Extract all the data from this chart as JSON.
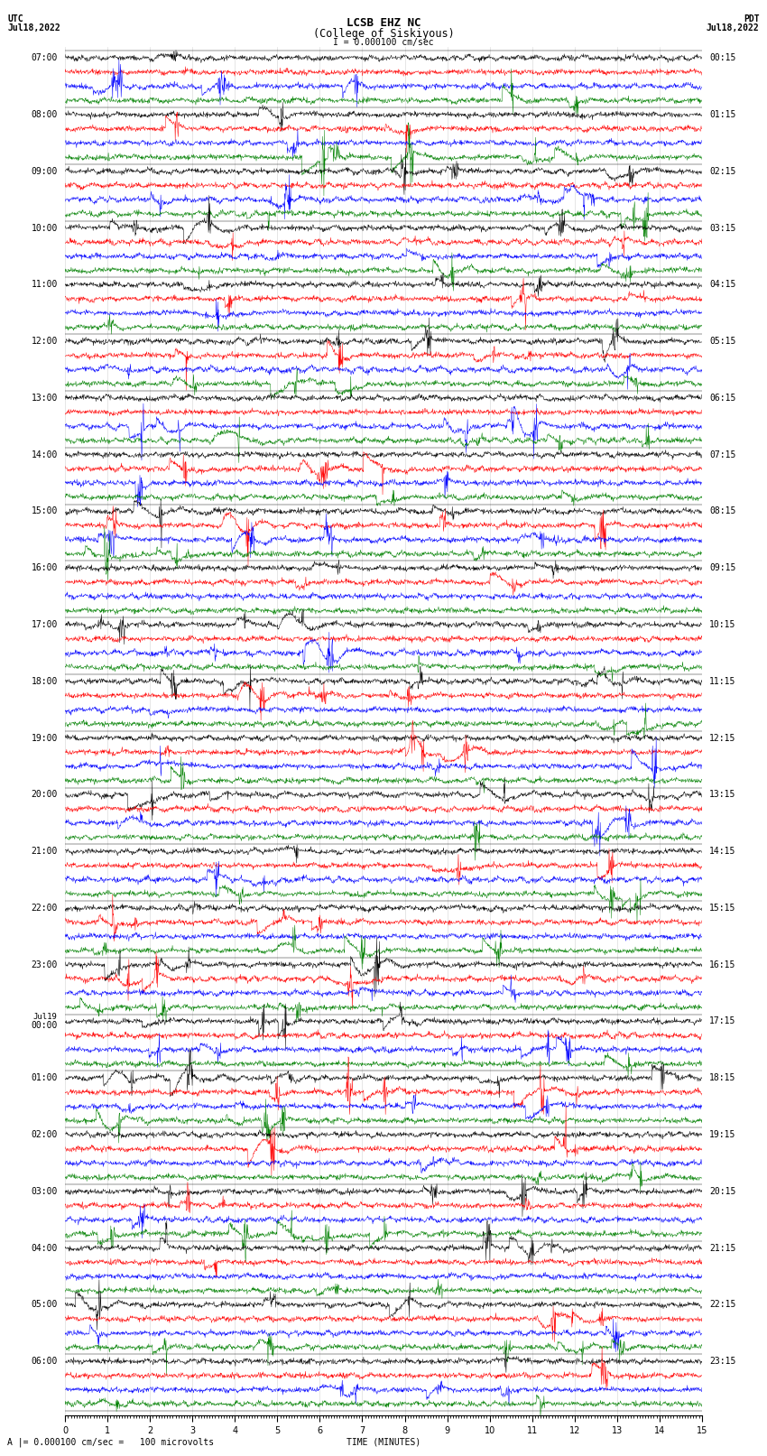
{
  "title_line1": "LCSB EHZ NC",
  "title_line2": "(College of Siskiyous)",
  "scale_label": "I = 0.000100 cm/sec",
  "utc_label": "UTC",
  "utc_date": "Jul18,2022",
  "pdt_label": "PDT",
  "pdt_date": "Jul18,2022",
  "bottom_label": "A |= 0.000100 cm/sec =   100 microvolts",
  "xlabel": "TIME (MINUTES)",
  "left_times": [
    "07:00",
    "08:00",
    "09:00",
    "10:00",
    "11:00",
    "12:00",
    "13:00",
    "14:00",
    "15:00",
    "16:00",
    "17:00",
    "18:00",
    "19:00",
    "20:00",
    "21:00",
    "22:00",
    "23:00",
    "Jul19\n00:00",
    "01:00",
    "02:00",
    "03:00",
    "04:00",
    "05:00",
    "06:00"
  ],
  "right_times": [
    "00:15",
    "01:15",
    "02:15",
    "03:15",
    "04:15",
    "05:15",
    "06:15",
    "07:15",
    "08:15",
    "09:15",
    "10:15",
    "11:15",
    "12:15",
    "13:15",
    "14:15",
    "15:15",
    "16:15",
    "17:15",
    "18:15",
    "19:15",
    "20:15",
    "21:15",
    "22:15",
    "23:15"
  ],
  "n_traces": 96,
  "n_points": 1800,
  "colors_cycle": [
    "black",
    "red",
    "blue",
    "green"
  ],
  "fig_width": 8.5,
  "fig_height": 16.13,
  "dpi": 100,
  "xlim": [
    0,
    15
  ],
  "bg_color": "white",
  "trace_amplitude": 0.28,
  "title_fontsize": 9,
  "label_fontsize": 7,
  "tick_fontsize": 7,
  "n_groups": 24,
  "traces_per_group": 4
}
